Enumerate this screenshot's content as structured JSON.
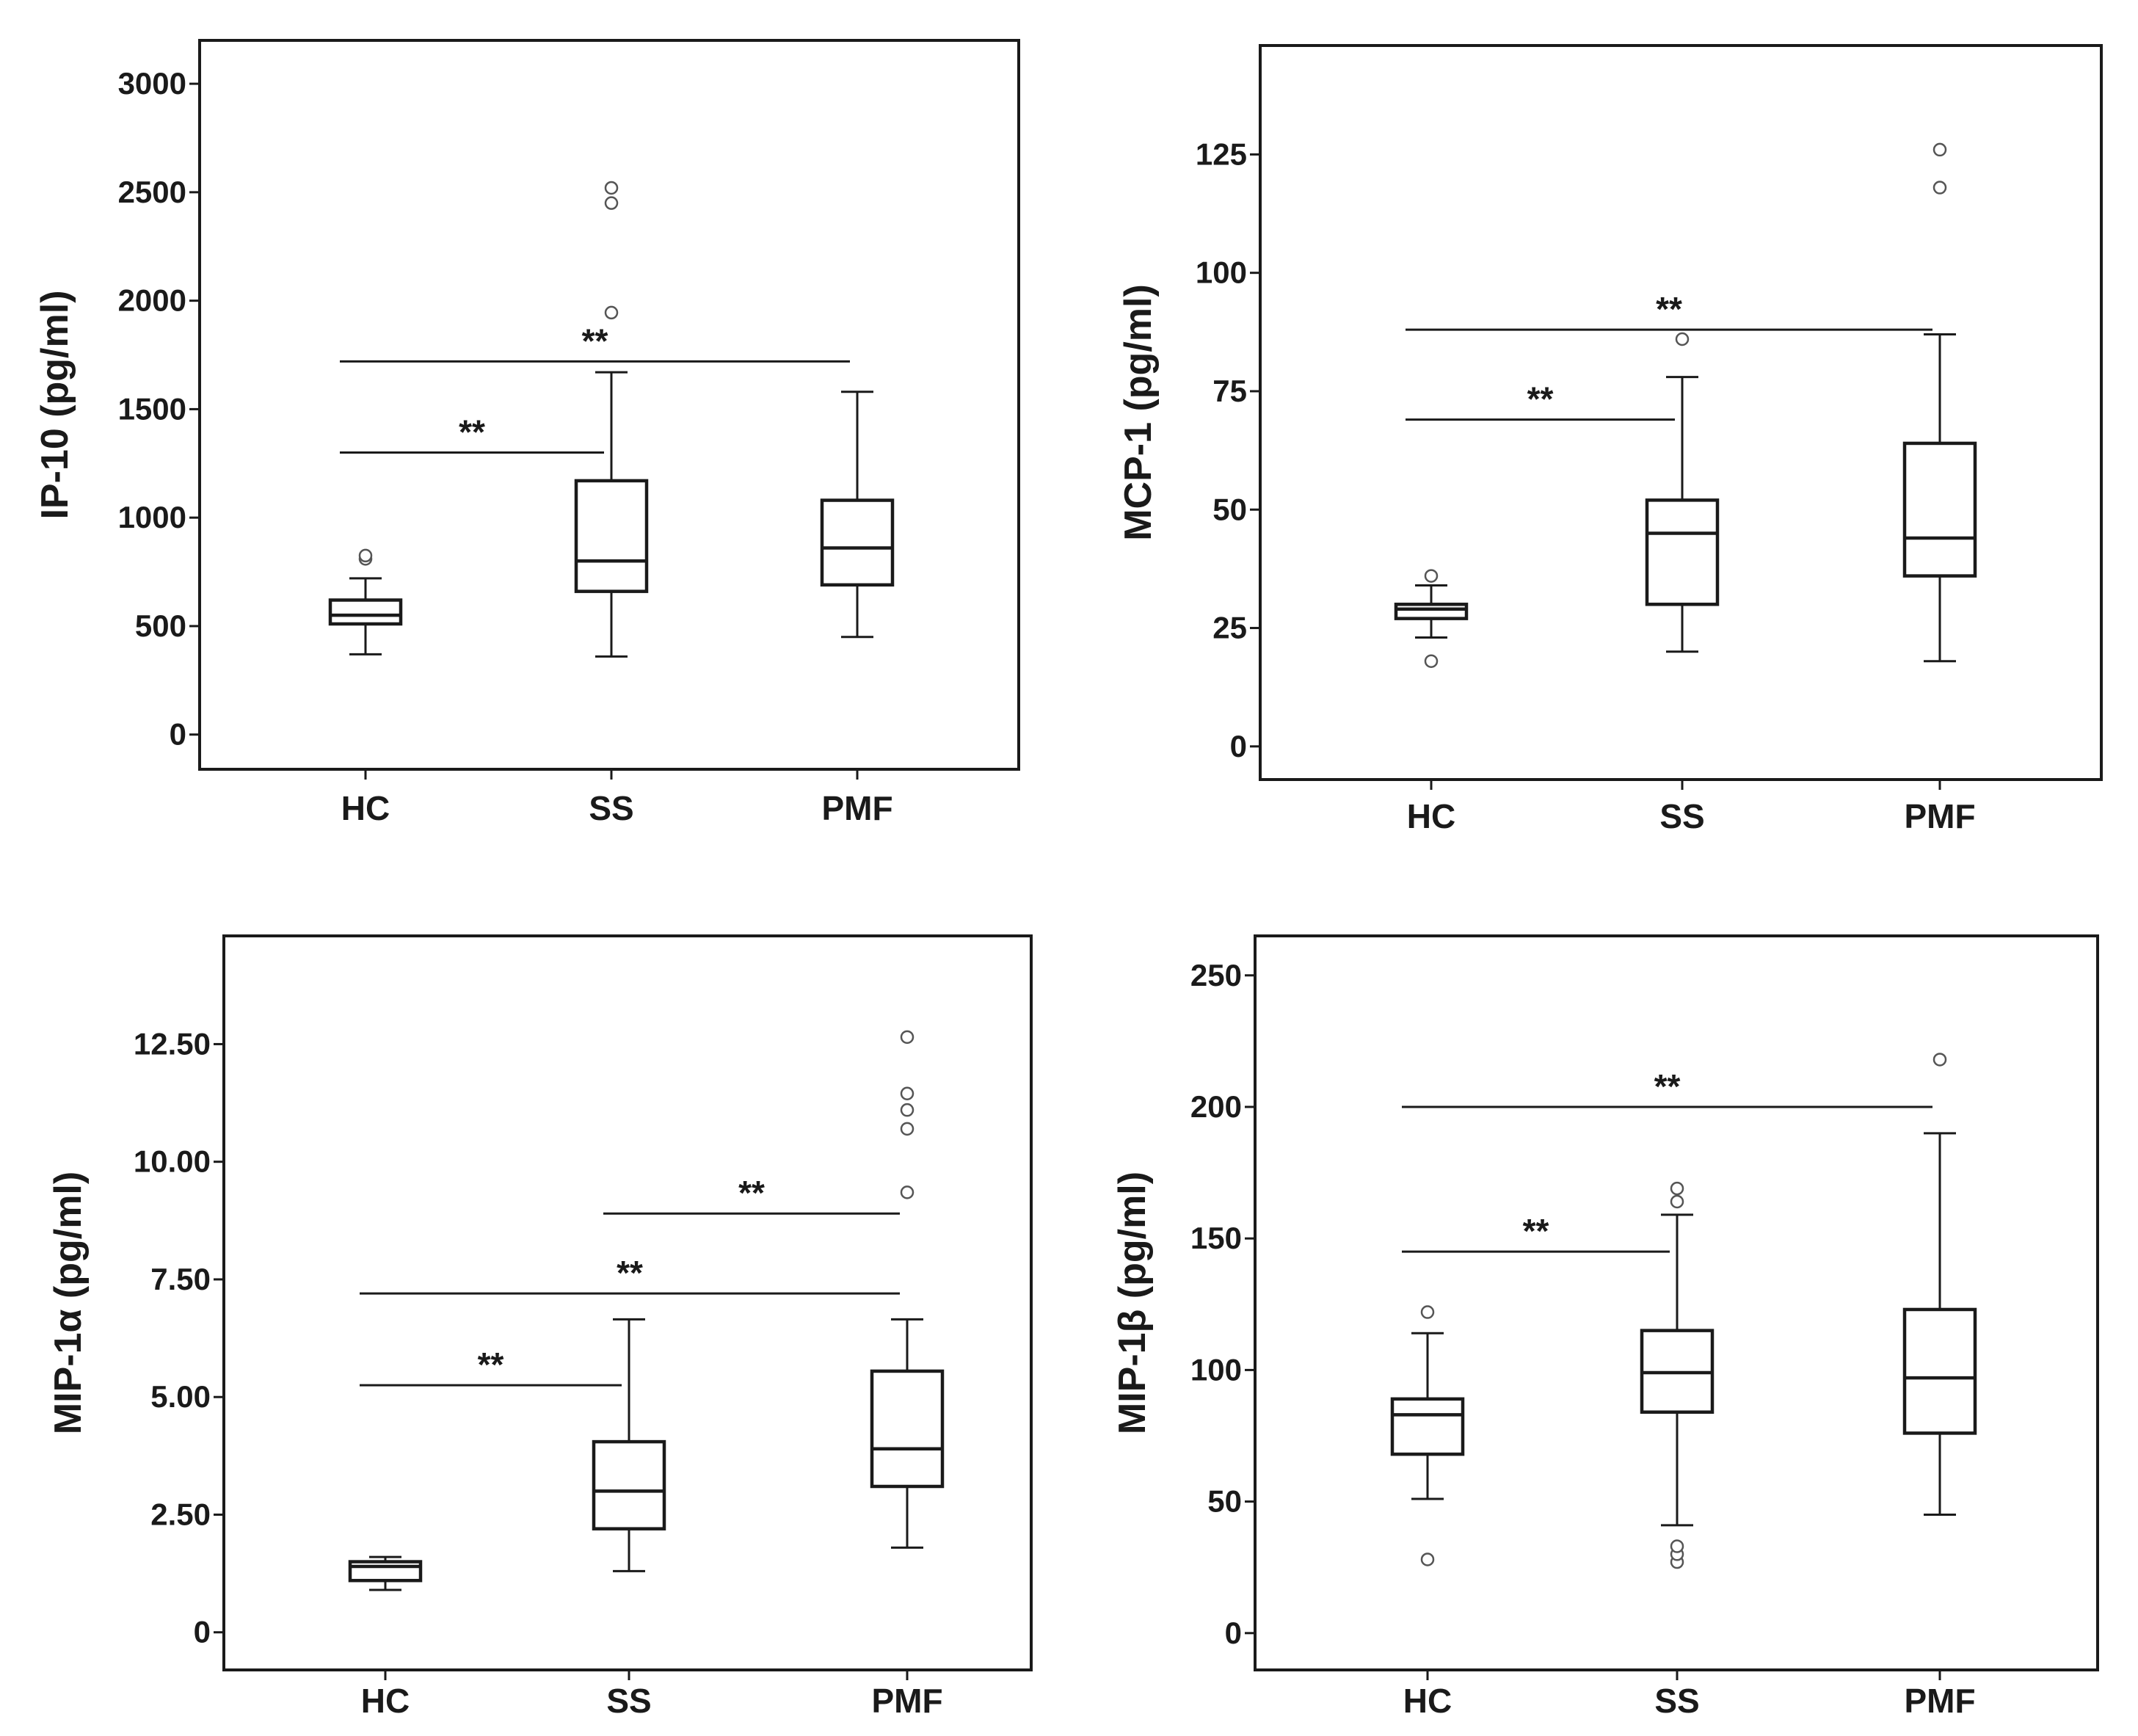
{
  "chart_data": [
    {
      "type": "box",
      "ylabel": "IP-10 (pg/ml)",
      "categories": [
        "HC",
        "SS",
        "PMF"
      ],
      "ylim": [
        -160,
        3200
      ],
      "yticks": [
        0,
        500,
        1000,
        1500,
        2000,
        2500,
        3000
      ],
      "ytick_labels": [
        "0",
        "500",
        "1000",
        "1500",
        "2000",
        "2500",
        "3000"
      ],
      "boxes": [
        {
          "category": "HC",
          "whisker_low": 370,
          "q1": 510,
          "median": 550,
          "q3": 620,
          "whisker_high": 720,
          "outliers": [
            810,
            825
          ]
        },
        {
          "category": "SS",
          "whisker_low": 360,
          "q1": 660,
          "median": 800,
          "q3": 1170,
          "whisker_high": 1670,
          "outliers": [
            1945,
            2450,
            2520
          ]
        },
        {
          "category": "PMF",
          "whisker_low": 450,
          "q1": 690,
          "median": 860,
          "q3": 1080,
          "whisker_high": 1580,
          "outliers": []
        }
      ],
      "significance": [
        {
          "from": "HC",
          "to": "SS",
          "y": 1300,
          "label": "**"
        },
        {
          "from": "HC",
          "to": "PMF",
          "y": 1720,
          "label": "**"
        }
      ]
    },
    {
      "type": "box",
      "ylabel": "MCP-1 (pg/ml)",
      "categories": [
        "HC",
        "SS",
        "PMF"
      ],
      "ylim": [
        -7,
        148
      ],
      "yticks": [
        0,
        25,
        50,
        75,
        100,
        125
      ],
      "ytick_labels": [
        "0",
        "25",
        "50",
        "75",
        "100",
        "125"
      ],
      "boxes": [
        {
          "category": "HC",
          "whisker_low": 23,
          "q1": 27,
          "median": 29,
          "q3": 30,
          "whisker_high": 34,
          "outliers": [
            18,
            36
          ]
        },
        {
          "category": "SS",
          "whisker_low": 20,
          "q1": 30,
          "median": 45,
          "q3": 52,
          "whisker_high": 78,
          "outliers": [
            86
          ]
        },
        {
          "category": "PMF",
          "whisker_low": 18,
          "q1": 36,
          "median": 44,
          "q3": 64,
          "whisker_high": 87,
          "outliers": [
            118,
            126
          ]
        }
      ],
      "significance": [
        {
          "from": "HC",
          "to": "SS",
          "y": 69,
          "label": "**"
        },
        {
          "from": "HC",
          "to": "PMF",
          "y": 88,
          "label": "**"
        }
      ]
    },
    {
      "type": "box",
      "ylabel": "MIP-1α (pg/ml)",
      "categories": [
        "HC",
        "SS",
        "PMF"
      ],
      "ylim": [
        -0.8,
        14.8
      ],
      "yticks": [
        0,
        2.5,
        5.0,
        7.5,
        10.0,
        12.5
      ],
      "ytick_labels": [
        "0",
        "2.50",
        "5.00",
        "7.50",
        "10.00",
        "12.50"
      ],
      "boxes": [
        {
          "category": "HC",
          "whisker_low": 0.9,
          "q1": 1.1,
          "median": 1.4,
          "q3": 1.5,
          "whisker_high": 1.6,
          "outliers": []
        },
        {
          "category": "SS",
          "whisker_low": 1.3,
          "q1": 2.2,
          "median": 3.0,
          "q3": 4.05,
          "whisker_high": 6.65,
          "outliers": []
        },
        {
          "category": "PMF",
          "whisker_low": 1.8,
          "q1": 3.1,
          "median": 3.9,
          "q3": 5.55,
          "whisker_high": 6.65,
          "outliers": [
            9.35,
            10.7,
            11.1,
            11.45,
            12.65
          ]
        }
      ],
      "significance": [
        {
          "from": "HC",
          "to": "SS",
          "y": 5.25,
          "label": "**"
        },
        {
          "from": "HC",
          "to": "PMF",
          "y": 7.2,
          "label": "**"
        },
        {
          "from": "SS",
          "to": "PMF",
          "y": 8.9,
          "label": "**"
        }
      ]
    },
    {
      "type": "box",
      "ylabel": "MIP-1β (pg/ml)",
      "categories": [
        "HC",
        "SS",
        "PMF"
      ],
      "ylim": [
        -14,
        265
      ],
      "yticks": [
        0,
        50,
        100,
        150,
        200,
        250
      ],
      "ytick_labels": [
        "0",
        "50",
        "100",
        "150",
        "200",
        "250"
      ],
      "boxes": [
        {
          "category": "HC",
          "whisker_low": 51,
          "q1": 68,
          "median": 83,
          "q3": 89,
          "whisker_high": 114,
          "outliers": [
            28,
            122
          ]
        },
        {
          "category": "SS",
          "whisker_low": 41,
          "q1": 84,
          "median": 99,
          "q3": 115,
          "whisker_high": 159,
          "outliers": [
            27,
            30,
            33,
            164,
            169
          ]
        },
        {
          "category": "PMF",
          "whisker_low": 45,
          "q1": 76,
          "median": 97,
          "q3": 123,
          "whisker_high": 190,
          "outliers": [
            218
          ]
        }
      ],
      "significance": [
        {
          "from": "HC",
          "to": "SS",
          "y": 145,
          "label": "**"
        },
        {
          "from": "HC",
          "to": "PMF",
          "y": 200,
          "label": "**"
        }
      ]
    }
  ]
}
